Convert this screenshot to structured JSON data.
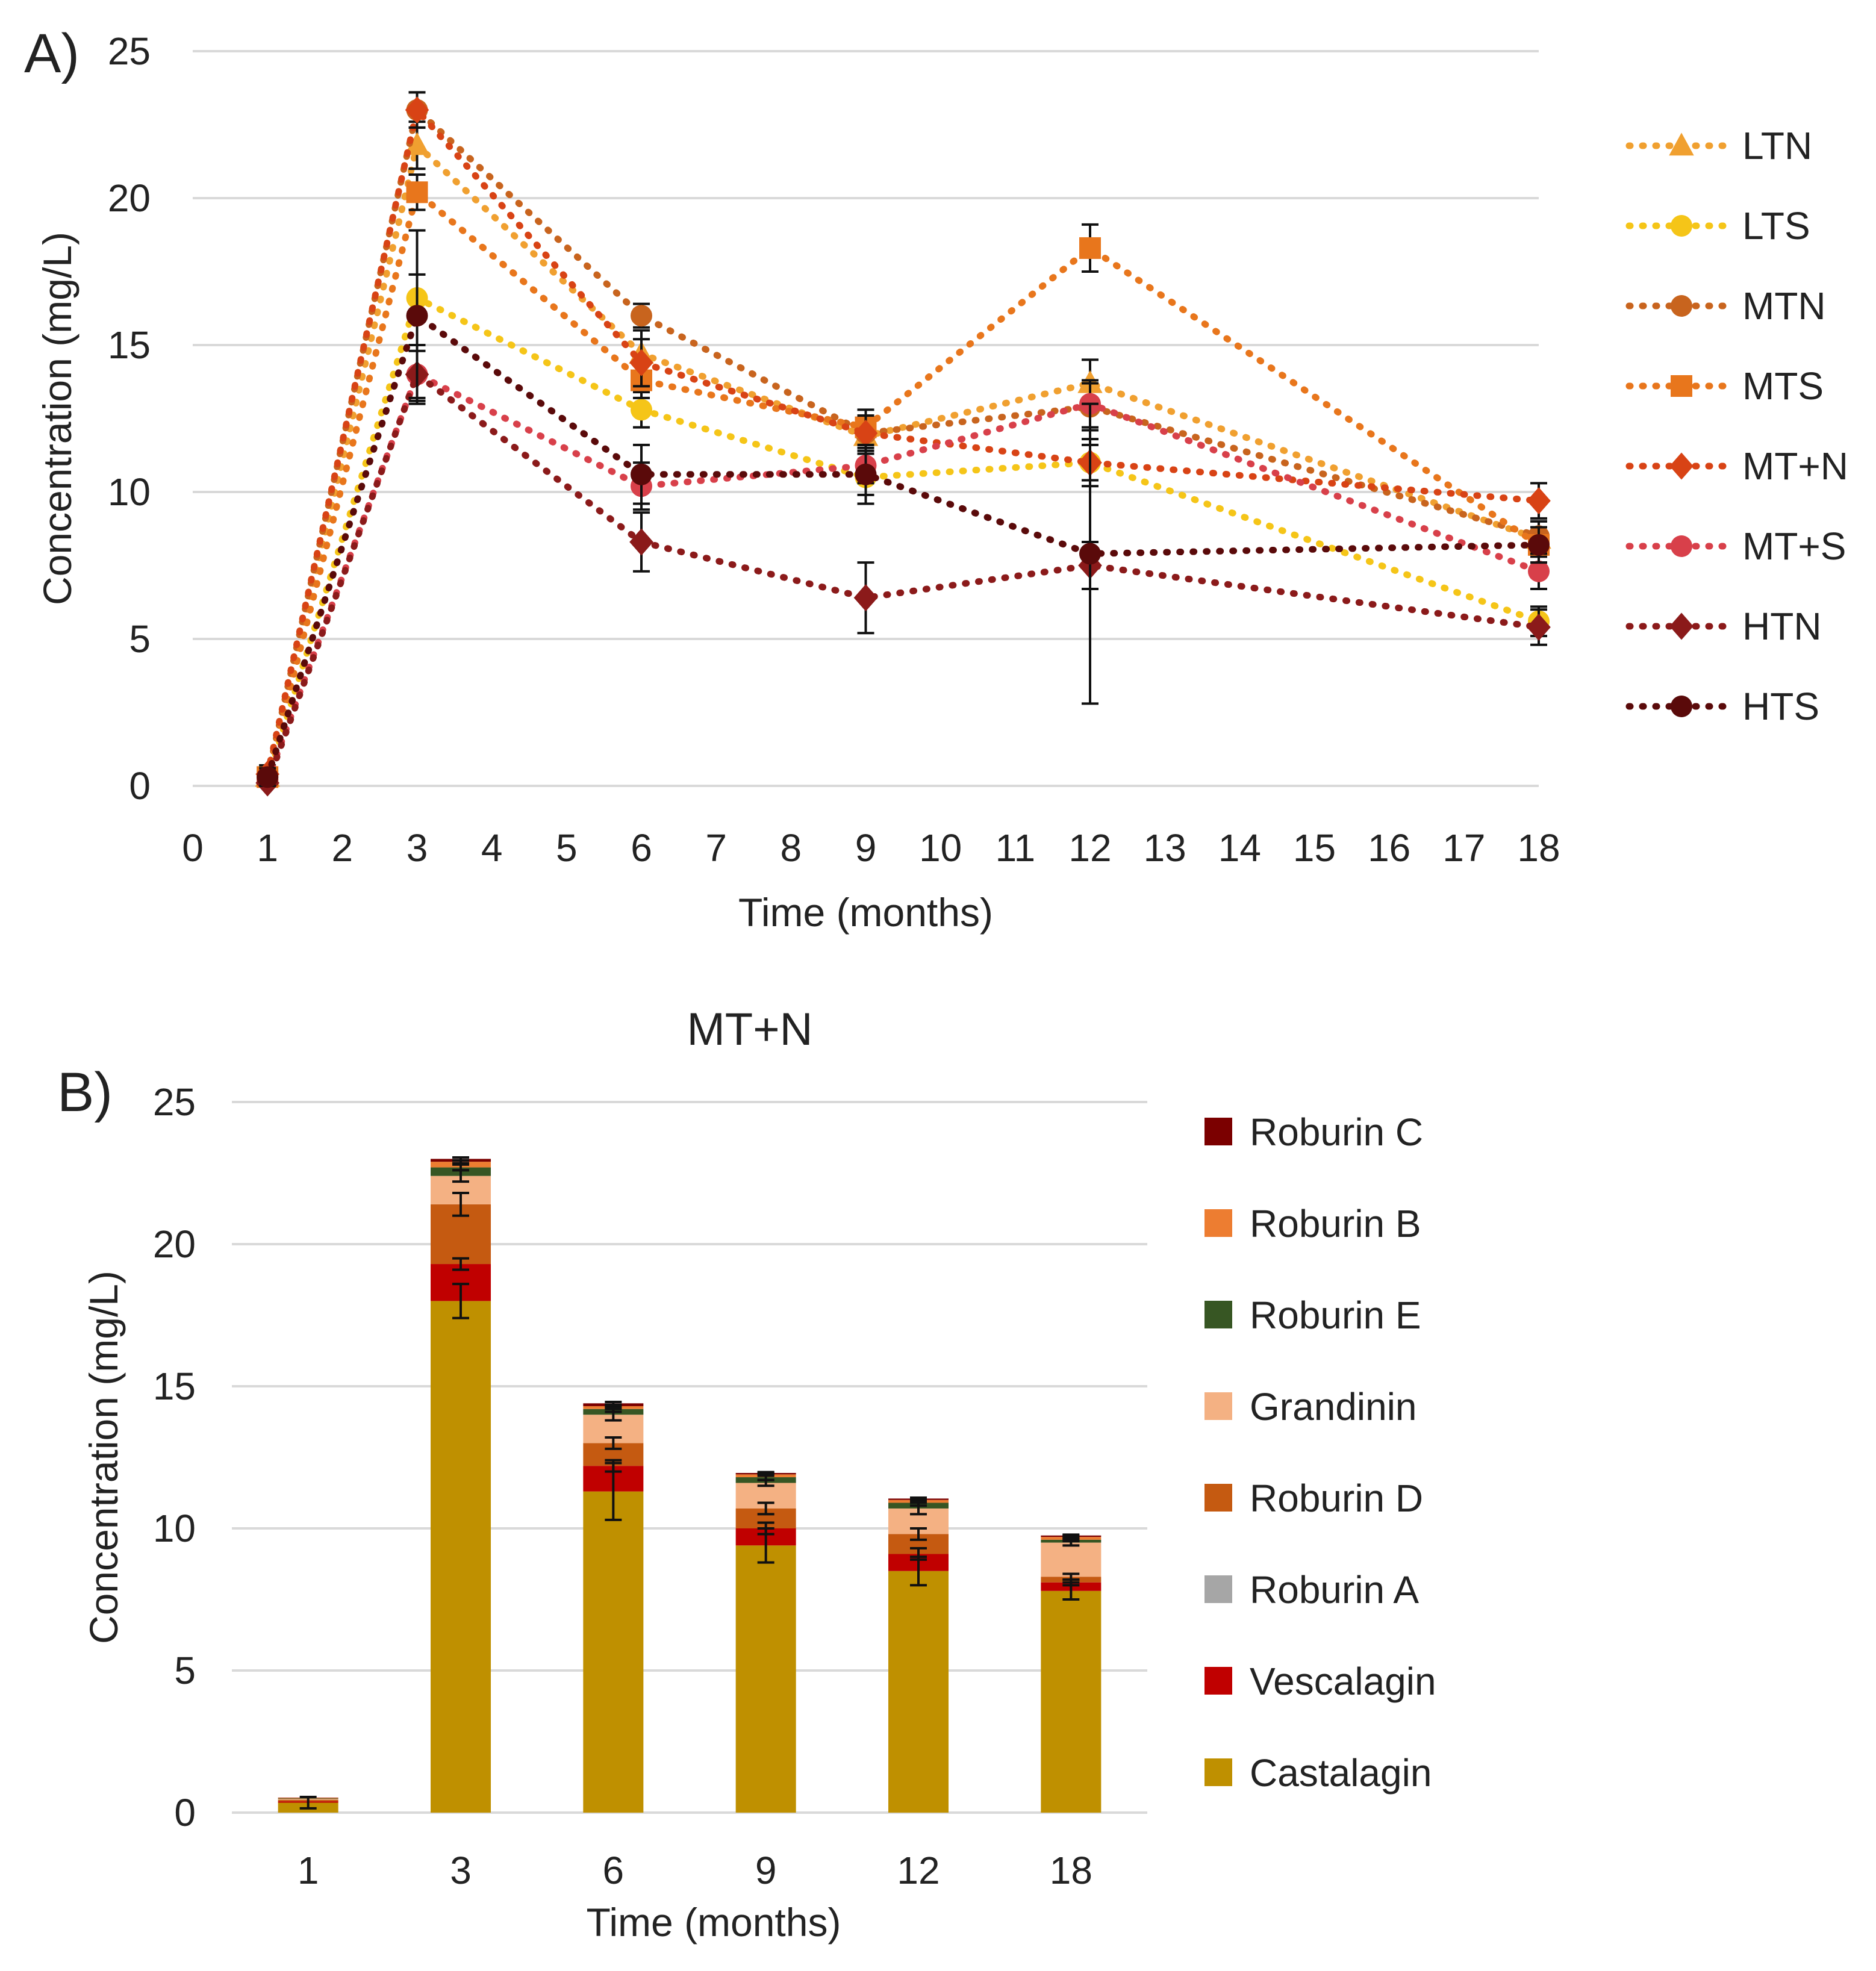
{
  "chart_data": [
    {
      "type": "line",
      "panel_label": "A)",
      "title": "",
      "xlabel": "Time (months)",
      "ylabel": "Concentration (mg/L)",
      "xlim": [
        0,
        18
      ],
      "ylim": [
        0,
        25
      ],
      "x_ticks": [
        "0",
        "1",
        "2",
        "3",
        "4",
        "5",
        "6",
        "7",
        "8",
        "9",
        "10",
        "11",
        "12",
        "13",
        "14",
        "15",
        "16",
        "17",
        "18"
      ],
      "y_ticks": [
        "0",
        "5",
        "10",
        "15",
        "20",
        "25"
      ],
      "x": [
        1,
        3,
        6,
        9,
        12,
        18
      ],
      "grid": true,
      "legend_position": "right",
      "series": [
        {
          "name": "LTN",
          "color": "#F0A030",
          "marker": "triangle",
          "values": [
            0.3,
            21.8,
            14.7,
            11.9,
            13.7,
            8.4
          ],
          "err": [
            0.3,
            0.8,
            0.8,
            0.6,
            0.8,
            0.6
          ]
        },
        {
          "name": "LTS",
          "color": "#F5C518",
          "marker": "circle",
          "values": [
            0.2,
            16.6,
            12.8,
            10.5,
            11.0,
            5.6
          ],
          "err": [
            0.2,
            0.8,
            0.6,
            0.6,
            0.6,
            0.5
          ]
        },
        {
          "name": "MTN",
          "color": "#C8641E",
          "marker": "circle",
          "values": [
            0.3,
            23.0,
            16.0,
            12.0,
            12.9,
            8.5
          ],
          "err": [
            0.3,
            0.6,
            0.4,
            0.6,
            0.8,
            0.5
          ]
        },
        {
          "name": "MTS",
          "color": "#E8761C",
          "marker": "square",
          "values": [
            0.3,
            20.2,
            13.8,
            12.2,
            18.3,
            8.2
          ],
          "err": [
            0.3,
            0.6,
            0.6,
            0.6,
            0.8,
            0.6
          ]
        },
        {
          "name": "MT+N",
          "color": "#D84315",
          "marker": "diamond",
          "values": [
            0.4,
            23.0,
            14.4,
            12.0,
            11.0,
            9.7
          ],
          "err": [
            0.3,
            0.6,
            0.8,
            0.6,
            0.8,
            0.6
          ]
        },
        {
          "name": "MT+S",
          "color": "#D8404A",
          "marker": "circle",
          "values": [
            0.2,
            14.0,
            10.2,
            10.9,
            13.0,
            7.3
          ],
          "err": [
            0.2,
            1.0,
            0.8,
            0.6,
            0.8,
            0.6
          ]
        },
        {
          "name": "HTN",
          "color": "#8B1A1A",
          "marker": "diamond",
          "values": [
            0.1,
            14.0,
            8.3,
            6.4,
            7.5,
            5.4
          ],
          "err": [
            0.1,
            0.8,
            1.0,
            1.2,
            0.8,
            0.6
          ]
        },
        {
          "name": "HTS",
          "color": "#5A0A0A",
          "marker": "circle",
          "values": [
            0.3,
            16.0,
            10.6,
            10.6,
            7.9,
            8.2
          ],
          "err": [
            0.3,
            2.9,
            1.0,
            1.0,
            5.1,
            0.6
          ]
        }
      ]
    },
    {
      "type": "bar",
      "stacked": true,
      "panel_label": "B)",
      "title": "MT+N",
      "xlabel": "Time (months)",
      "ylabel": "Concentration (mg/L)",
      "categories": [
        "1",
        "3",
        "6",
        "9",
        "12",
        "18"
      ],
      "ylim": [
        0,
        25
      ],
      "y_ticks": [
        "0",
        "5",
        "10",
        "15",
        "20",
        "25"
      ],
      "grid": true,
      "legend_position": "right",
      "series": [
        {
          "name": "Castalagin",
          "color": "#BF9000",
          "values": [
            0.35,
            18.0,
            11.3,
            9.4,
            8.5,
            7.8
          ],
          "err": [
            0.2,
            0.6,
            1.0,
            0.6,
            0.5,
            0.3
          ]
        },
        {
          "name": "Vescalagin",
          "color": "#C00000",
          "values": [
            0.05,
            1.3,
            0.9,
            0.6,
            0.6,
            0.3
          ],
          "err": [
            0.0,
            0.2,
            0.2,
            0.2,
            0.2,
            0.1
          ]
        },
        {
          "name": "Roburin A",
          "color": "#A6A6A6",
          "values": [
            0.0,
            0.0,
            0.0,
            0.0,
            0.0,
            0.0
          ],
          "err": [
            0,
            0,
            0,
            0,
            0,
            0
          ]
        },
        {
          "name": "Roburin D",
          "color": "#C55A11",
          "values": [
            0.05,
            2.1,
            0.8,
            0.7,
            0.7,
            0.2
          ],
          "err": [
            0.0,
            0.4,
            0.2,
            0.2,
            0.2,
            0.1
          ]
        },
        {
          "name": "Grandinin",
          "color": "#F4B183",
          "values": [
            0.03,
            1.0,
            1.0,
            0.9,
            0.9,
            1.2
          ],
          "err": [
            0.0,
            0.2,
            0.2,
            0.1,
            0.2,
            0.1
          ]
        },
        {
          "name": "Roburin E",
          "color": "#375623",
          "values": [
            0.02,
            0.3,
            0.2,
            0.2,
            0.2,
            0.1
          ],
          "err": [
            0.0,
            0.1,
            0.1,
            0.1,
            0.1,
            0.05
          ]
        },
        {
          "name": "Roburin B",
          "color": "#ED7D31",
          "values": [
            0.02,
            0.2,
            0.1,
            0.1,
            0.1,
            0.1
          ],
          "err": [
            0.0,
            0.05,
            0.05,
            0.05,
            0.05,
            0.05
          ]
        },
        {
          "name": "Roburin C",
          "color": "#7B0000",
          "values": [
            0.01,
            0.1,
            0.1,
            0.05,
            0.05,
            0.05
          ],
          "err": [
            0.0,
            0.05,
            0.05,
            0.03,
            0.03,
            0.03
          ]
        }
      ]
    }
  ]
}
